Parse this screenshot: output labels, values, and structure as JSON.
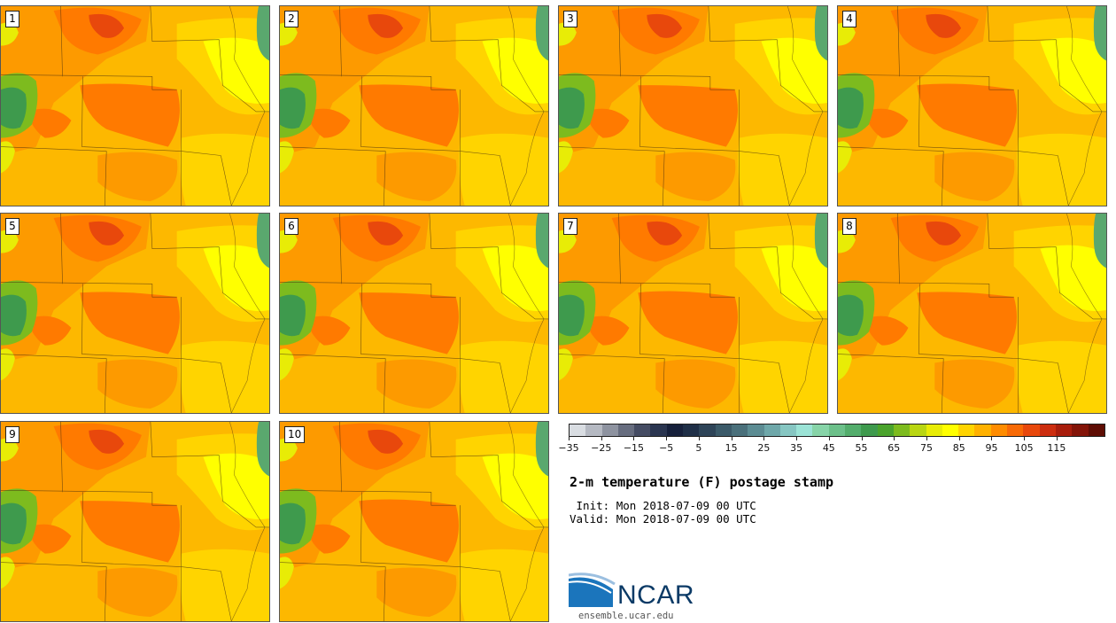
{
  "title": "2-m temperature (F) postage stamp",
  "init_label": "Init:",
  "init_time": "Mon 2018-07-09 00 UTC",
  "valid_label": "Valid:",
  "valid_time": "Mon 2018-07-09 00 UTC",
  "panels": [
    "1",
    "2",
    "3",
    "4",
    "5",
    "6",
    "7",
    "8",
    "9",
    "10"
  ],
  "colorbar": {
    "unit": "F",
    "tick_labels": [
      "-35",
      "-25",
      "-15",
      "-5",
      "5",
      "15",
      "25",
      "35",
      "45",
      "55",
      "65",
      "75",
      "85",
      "95",
      "105",
      "115"
    ],
    "colors": [
      "#d9dde2",
      "#b5b9c2",
      "#8e93a0",
      "#676d7f",
      "#454c63",
      "#2a3550",
      "#16203b",
      "#1f2f47",
      "#2e4458",
      "#3b5a69",
      "#4a707b",
      "#5c8c93",
      "#6fa8aa",
      "#86c6c2",
      "#9be3d6",
      "#87d4a8",
      "#6cc08a",
      "#53ad6c",
      "#3e9a4d",
      "#4aa32c",
      "#7dbb1e",
      "#b9d612",
      "#e8ec06",
      "#ffff00",
      "#ffd400",
      "#ffb100",
      "#ff8c00",
      "#f86a06",
      "#e8480c",
      "#cc2d0f",
      "#a81d0c",
      "#831408",
      "#5e0d04"
    ]
  },
  "map_colors": {
    "base": "#fdb800",
    "warm": "#fd9a00",
    "hot": "#ff7a00",
    "hottest": "#e8480c",
    "mild": "#ffd400",
    "cool": "#ffff00",
    "cooler": "#e8ec06",
    "mountain_lo": "#7dbb1e",
    "mountain_hi": "#3e9a4d",
    "lake": "#5aa86e"
  },
  "logo": {
    "name": "NCAR",
    "url": "ensemble.ucar.edu"
  }
}
